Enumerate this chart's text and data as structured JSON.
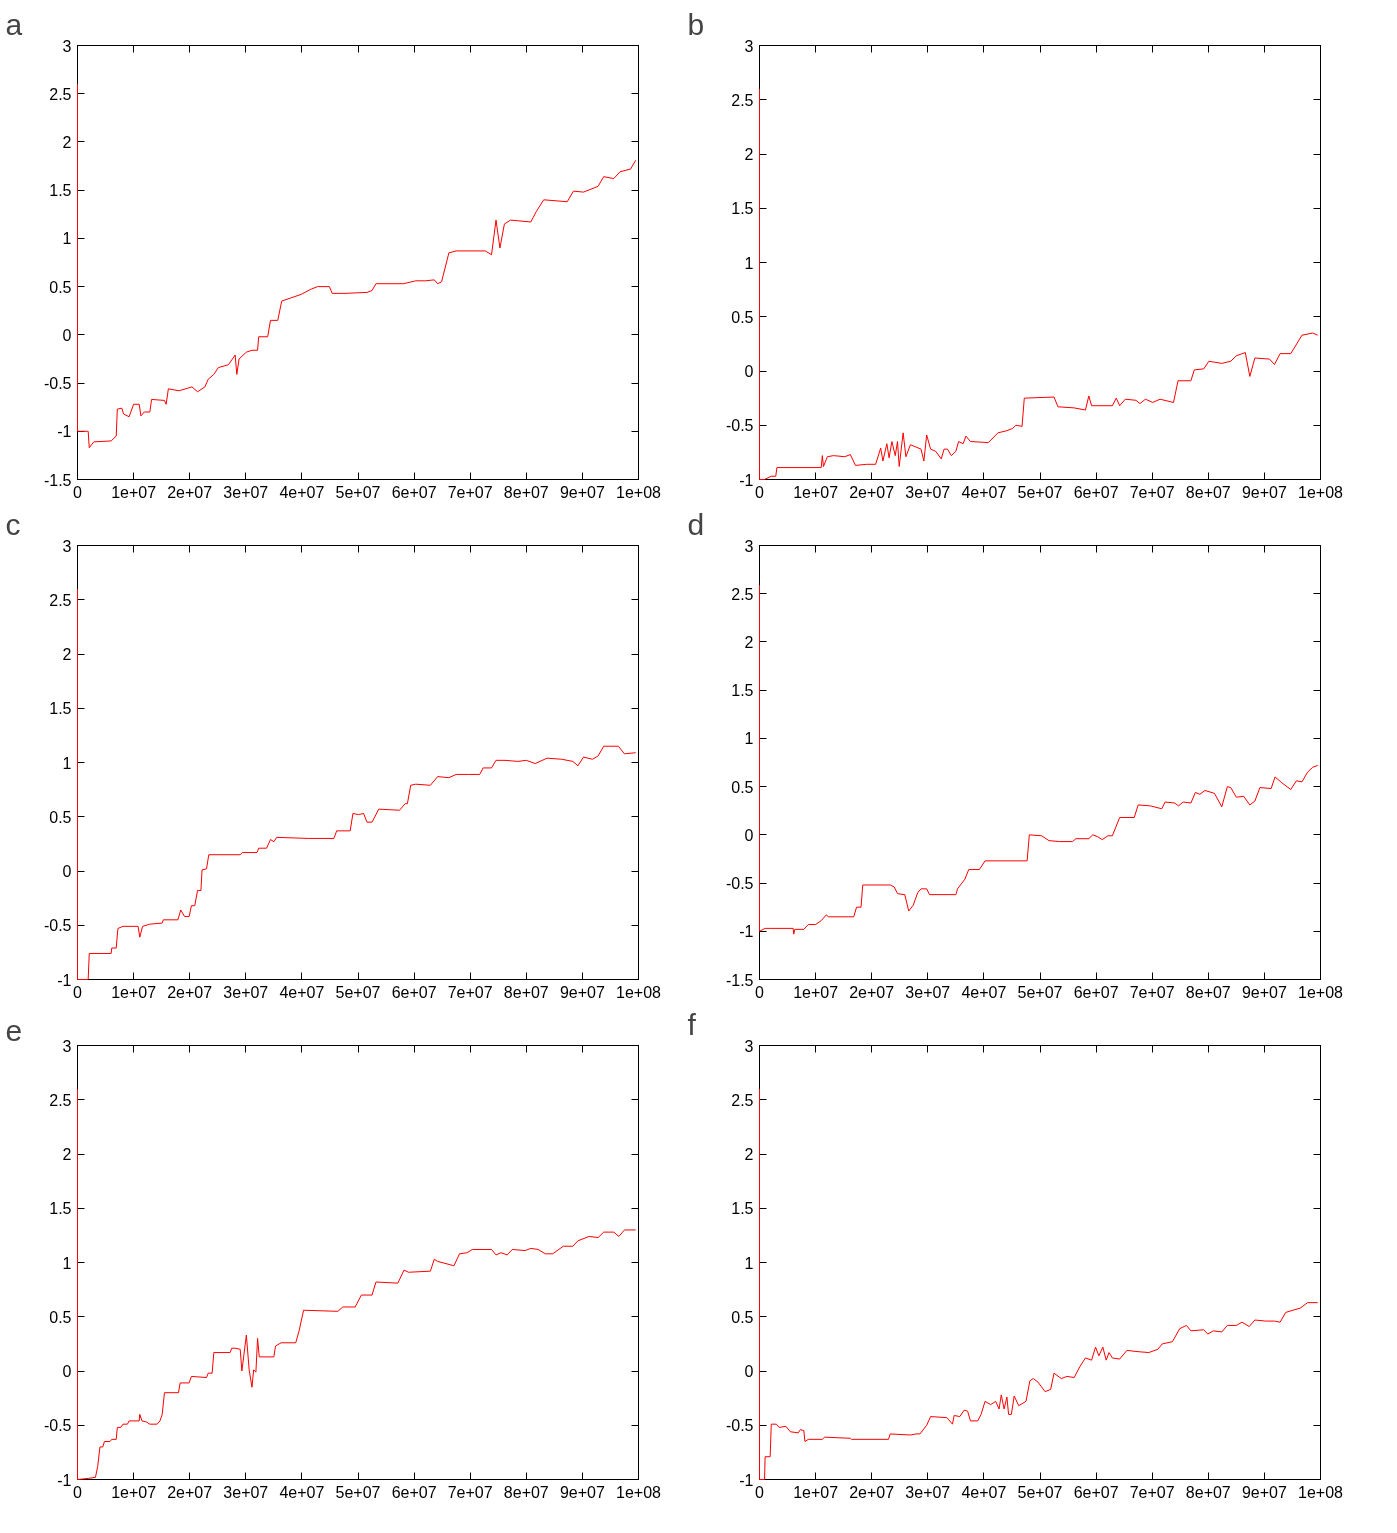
{
  "chart_data": [
    {
      "type": "line",
      "title": "a",
      "color": "#ff0000",
      "xlim": [
        0,
        100000000
      ],
      "ylim": [
        -1.5,
        3
      ],
      "xticks": [
        0,
        {
          "value": 10000000.0,
          "label": "1e+07"
        },
        {
          "value": 20000000.0,
          "label": "2e+07"
        },
        {
          "value": 30000000.0,
          "label": "3e+07"
        },
        {
          "value": 40000000.0,
          "label": "4e+07"
        },
        {
          "value": 50000000.0,
          "label": "5e+07"
        },
        {
          "value": 60000000.0,
          "label": "6e+07"
        },
        {
          "value": 70000000.0,
          "label": "7e+07"
        },
        {
          "value": 80000000.0,
          "label": "8e+07"
        },
        {
          "value": 90000000.0,
          "label": "9e+07"
        },
        {
          "value": 100000000.0,
          "label": "1e+08"
        }
      ],
      "yticks": [
        -1.5,
        -1,
        -0.5,
        0,
        0.5,
        1,
        1.5,
        2,
        2.5,
        3
      ],
      "x": [
        0,
        0,
        1900000.0,
        2100000.0,
        2900000.0,
        6000000.0,
        6900000.0,
        7100000.0,
        7900000.0,
        8200000.0,
        9200000.0,
        10000000.0,
        11000000.0,
        11300000.0,
        11900000.0,
        12900000.0,
        13200000.0,
        15500000.0,
        15800000.0,
        16200000.0,
        18100000.0,
        20400000.0,
        21400000.0,
        22700000.0,
        23300000.0,
        24300000.0,
        25100000.0,
        26900000.0,
        28100000.0,
        28400000.0,
        28800000.0,
        30100000.0,
        31100000.0,
        32100000.0,
        32300000.0,
        33900000.0,
        34400000.0,
        35700000.0,
        36400000.0,
        37900000.0,
        39900000.0,
        41500000.0,
        42800000.0,
        44900000.0,
        45400000.0,
        47700000.0,
        51600000.0,
        52500000.0,
        53200000.0,
        58100000.0,
        60300000.0,
        62000000.0,
        63600000.0,
        64200000.0,
        64900000.0,
        66200000.0,
        67500000.0,
        72700000.0,
        73800000.0,
        74600000.0,
        75300000.0,
        76100000.0,
        77200000.0,
        80800000.0,
        81800000.0,
        83100000.0,
        87300000.0,
        88400000.0,
        90200000.0,
        92800000.0,
        93800000.0,
        95600000.0,
        96700000.0,
        98600000.0,
        99500000.0
      ],
      "values": [
        2.6,
        -1.0,
        -1.0,
        -1.17,
        -1.11,
        -1.1,
        -1.05,
        -0.77,
        -0.76,
        -0.82,
        -0.85,
        -0.72,
        -0.72,
        -0.84,
        -0.8,
        -0.8,
        -0.67,
        -0.68,
        -0.72,
        -0.56,
        -0.58,
        -0.54,
        -0.59,
        -0.54,
        -0.46,
        -0.41,
        -0.34,
        -0.31,
        -0.21,
        -0.41,
        -0.25,
        -0.18,
        -0.16,
        -0.16,
        -0.02,
        -0.02,
        0.15,
        0.15,
        0.35,
        0.38,
        0.42,
        0.47,
        0.5,
        0.5,
        0.43,
        0.43,
        0.44,
        0.46,
        0.53,
        0.53,
        0.56,
        0.56,
        0.57,
        0.53,
        0.55,
        0.85,
        0.87,
        0.87,
        0.83,
        1.19,
        0.9,
        1.15,
        1.19,
        1.17,
        1.28,
        1.4,
        1.38,
        1.49,
        1.48,
        1.54,
        1.64,
        1.62,
        1.69,
        1.72,
        1.81
      ]
    },
    {
      "type": "line",
      "title": "b",
      "color": "#ff0000",
      "xlim": [
        0,
        100000000
      ],
      "ylim": [
        -1,
        3
      ],
      "xticks": [
        0,
        {
          "value": 10000000.0,
          "label": "1e+07"
        },
        {
          "value": 20000000.0,
          "label": "2e+07"
        },
        {
          "value": 30000000.0,
          "label": "3e+07"
        },
        {
          "value": 40000000.0,
          "label": "4e+07"
        },
        {
          "value": 50000000.0,
          "label": "5e+07"
        },
        {
          "value": 60000000.0,
          "label": "6e+07"
        },
        {
          "value": 70000000.0,
          "label": "7e+07"
        },
        {
          "value": 80000000.0,
          "label": "8e+07"
        },
        {
          "value": 90000000.0,
          "label": "9e+07"
        },
        {
          "value": 100000000.0,
          "label": "1e+08"
        }
      ],
      "yticks": [
        -1,
        -0.5,
        0,
        0.5,
        1,
        1.5,
        2,
        2.5,
        3
      ],
      "x": [
        0,
        0,
        900000.0,
        2100000.0,
        2900000.0,
        3100000.0,
        11000000.0,
        11200000.0,
        11400000.0,
        12100000.0,
        13200000.0,
        15200000.0,
        16200000.0,
        17100000.0,
        19100000.0,
        20700000.0,
        21600000.0,
        22000000.0,
        22700000.0,
        23100000.0,
        23600000.0,
        24200000.0,
        24600000.0,
        24900000.0,
        25600000.0,
        26100000.0,
        26900000.0,
        28800000.0,
        29300000.0,
        29800000.0,
        30500000.0,
        31400000.0,
        32400000.0,
        32900000.0,
        33500000.0,
        34200000.0,
        35000000.0,
        35500000.0,
        36300000.0,
        36800000.0,
        37600000.0,
        40800000.0,
        42500000.0,
        44100000.0,
        45100000.0,
        45700000.0,
        46800000.0,
        47200000.0,
        52500000.0,
        53200000.0,
        56100000.0,
        58100000.0,
        58700000.0,
        59200000.0,
        62900000.0,
        63600000.0,
        64200000.0,
        65200000.0,
        67100000.0,
        67800000.0,
        68800000.0,
        70100000.0,
        71400000.0,
        73800000.0,
        74600000.0,
        76900000.0,
        77500000.0,
        79200000.0,
        80100000.0,
        82400000.0,
        84000000.0,
        85000000.0,
        86600000.0,
        87400000.0,
        88300000.0,
        90900000.0,
        91800000.0,
        92800000.0,
        94700000.0,
        96700000.0,
        98600000.0,
        99500000.0
      ],
      "values": [
        2.6,
        -1.0,
        -1.0,
        -0.97,
        -0.97,
        -0.89,
        -0.89,
        -0.78,
        -0.88,
        -0.79,
        -0.78,
        -0.79,
        -0.77,
        -0.87,
        -0.86,
        -0.86,
        -0.71,
        -0.83,
        -0.67,
        -0.8,
        -0.65,
        -0.78,
        -0.65,
        -0.88,
        -0.57,
        -0.79,
        -0.68,
        -0.72,
        -0.83,
        -0.59,
        -0.72,
        -0.74,
        -0.81,
        -0.72,
        -0.72,
        -0.78,
        -0.74,
        -0.65,
        -0.67,
        -0.6,
        -0.65,
        -0.66,
        -0.57,
        -0.55,
        -0.53,
        -0.5,
        -0.51,
        -0.25,
        -0.24,
        -0.33,
        -0.34,
        -0.36,
        -0.23,
        -0.32,
        -0.32,
        -0.25,
        -0.32,
        -0.26,
        -0.27,
        -0.3,
        -0.26,
        -0.29,
        -0.26,
        -0.29,
        -0.09,
        -0.09,
        0.01,
        0.02,
        0.09,
        0.07,
        0.09,
        0.14,
        0.17,
        -0.05,
        0.12,
        0.11,
        0.06,
        0.16,
        0.16,
        0.33,
        0.35,
        0.33
      ]
    },
    {
      "type": "line",
      "title": "c",
      "color": "#ff0000",
      "xlim": [
        0,
        100000000
      ],
      "ylim": [
        -1,
        3
      ],
      "xticks": [
        0,
        {
          "value": 10000000.0,
          "label": "1e+07"
        },
        {
          "value": 20000000.0,
          "label": "2e+07"
        },
        {
          "value": 30000000.0,
          "label": "3e+07"
        },
        {
          "value": 40000000.0,
          "label": "4e+07"
        },
        {
          "value": 50000000.0,
          "label": "5e+07"
        },
        {
          "value": 60000000.0,
          "label": "6e+07"
        },
        {
          "value": 70000000.0,
          "label": "7e+07"
        },
        {
          "value": 80000000.0,
          "label": "8e+07"
        },
        {
          "value": 90000000.0,
          "label": "9e+07"
        },
        {
          "value": 100000000.0,
          "label": "1e+08"
        }
      ],
      "yticks": [
        -1,
        -0.5,
        0,
        0.5,
        1,
        1.5,
        2,
        2.5,
        3
      ],
      "x": [
        0,
        0,
        1900000.0,
        2100000.0,
        6000000.0,
        6100000.0,
        6900000.0,
        7200000.0,
        8100000.0,
        10800000.0,
        11100000.0,
        11600000.0,
        12900000.0,
        15100000.0,
        15300000.0,
        17900000.0,
        18400000.0,
        19100000.0,
        19900000.0,
        20300000.0,
        20900000.0,
        21400000.0,
        22000000.0,
        22200000.0,
        23000000.0,
        23400000.0,
        29000000.0,
        29400000.0,
        32000000.0,
        32300000.0,
        33700000.0,
        34400000.0,
        35000000.0,
        35500000.0,
        41200000.0,
        45700000.0,
        46200000.0,
        48600000.0,
        49100000.0,
        50100000.0,
        51000000.0,
        51600000.0,
        52500000.0,
        53700000.0,
        57400000.0,
        58400000.0,
        58800000.0,
        59400000.0,
        60300000.0,
        62900000.0,
        64200000.0,
        66200000.0,
        67500000.0,
        69700000.0,
        71700000.0,
        72300000.0,
        73800000.0,
        74600000.0,
        76200000.0,
        78500000.0,
        80000000.0,
        81600000.0,
        83700000.0,
        86300000.0,
        88300000.0,
        89200000.0,
        90200000.0,
        91800000.0,
        92800000.0,
        93800000.0,
        96400000.0,
        97500000.0,
        99500000.0
      ],
      "values": [
        2.6,
        -1.0,
        -1.0,
        -0.76,
        -0.76,
        -0.71,
        -0.71,
        -0.53,
        -0.51,
        -0.51,
        -0.61,
        -0.51,
        -0.49,
        -0.48,
        -0.45,
        -0.45,
        -0.36,
        -0.42,
        -0.42,
        -0.32,
        -0.32,
        -0.18,
        -0.18,
        0.01,
        0.02,
        0.15,
        0.15,
        0.17,
        0.17,
        0.21,
        0.21,
        0.29,
        0.27,
        0.31,
        0.3,
        0.3,
        0.37,
        0.37,
        0.53,
        0.52,
        0.53,
        0.45,
        0.45,
        0.57,
        0.56,
        0.62,
        0.62,
        0.79,
        0.8,
        0.79,
        0.87,
        0.86,
        0.89,
        0.89,
        0.89,
        0.95,
        0.95,
        1.02,
        1.02,
        1.01,
        1.02,
        0.99,
        1.04,
        1.03,
        1.01,
        0.97,
        1.05,
        1.03,
        1.06,
        1.15,
        1.15,
        1.08,
        1.09
      ]
    },
    {
      "type": "line",
      "title": "d",
      "color": "#ff0000",
      "xlim": [
        0,
        100000000
      ],
      "ylim": [
        -1.5,
        3
      ],
      "xticks": [
        0,
        {
          "value": 10000000.0,
          "label": "1e+07"
        },
        {
          "value": 20000000.0,
          "label": "2e+07"
        },
        {
          "value": 30000000.0,
          "label": "3e+07"
        },
        {
          "value": 40000000.0,
          "label": "4e+07"
        },
        {
          "value": 50000000.0,
          "label": "5e+07"
        },
        {
          "value": 60000000.0,
          "label": "6e+07"
        },
        {
          "value": 70000000.0,
          "label": "7e+07"
        },
        {
          "value": 80000000.0,
          "label": "8e+07"
        },
        {
          "value": 90000000.0,
          "label": "9e+07"
        },
        {
          "value": 100000000.0,
          "label": "1e+08"
        }
      ],
      "yticks": [
        -1.5,
        -1,
        -0.5,
        0,
        0.5,
        1,
        1.5,
        2,
        2.5,
        3
      ],
      "x": [
        0,
        0,
        1000000.0,
        1900000.0,
        6000000.0,
        6100000.0,
        6300000.0,
        7900000.0,
        8700000.0,
        10000000.0,
        11000000.0,
        11900000.0,
        12300000.0,
        16800000.0,
        17300000.0,
        18100000.0,
        18400000.0,
        23300000.0,
        24000000.0,
        24600000.0,
        25900000.0,
        26600000.0,
        27400000.0,
        28200000.0,
        28800000.0,
        29800000.0,
        30300000.0,
        35000000.0,
        35300000.0,
        36600000.0,
        37300000.0,
        39200000.0,
        40200000.0,
        47700000.0,
        48100000.0,
        50300000.0,
        51600000.0,
        53500000.0,
        55800000.0,
        56400000.0,
        58700000.0,
        59400000.0,
        60300000.0,
        61100000.0,
        62100000.0,
        62900000.0,
        64200000.0,
        66800000.0,
        67500000.0,
        69700000.0,
        71700000.0,
        72300000.0,
        74000000.0,
        74700000.0,
        75500000.0,
        76900000.0,
        77700000.0,
        78500000.0,
        79400000.0,
        81100000.0,
        82400000.0,
        83400000.0,
        84000000.0,
        85000000.0,
        86300000.0,
        87400000.0,
        88300000.0,
        89200000.0,
        91200000.0,
        91900000.0,
        93100000.0,
        94700000.0,
        95700000.0,
        96700000.0,
        97700000.0,
        98600000.0,
        99500000.0
      ],
      "values": [
        2.59,
        -1.0,
        -0.97,
        -0.97,
        -0.97,
        -1.03,
        -0.98,
        -0.98,
        -0.93,
        -0.93,
        -0.89,
        -0.83,
        -0.85,
        -0.85,
        -0.75,
        -0.75,
        -0.52,
        -0.52,
        -0.54,
        -0.61,
        -0.62,
        -0.79,
        -0.73,
        -0.6,
        -0.56,
        -0.56,
        -0.62,
        -0.62,
        -0.56,
        -0.46,
        -0.36,
        -0.36,
        -0.27,
        -0.27,
        0.0,
        -0.01,
        -0.06,
        -0.07,
        -0.07,
        -0.04,
        -0.04,
        0.0,
        -0.02,
        -0.05,
        -0.01,
        -0.01,
        0.18,
        0.18,
        0.31,
        0.3,
        0.27,
        0.34,
        0.33,
        0.3,
        0.34,
        0.33,
        0.44,
        0.42,
        0.46,
        0.43,
        0.29,
        0.5,
        0.49,
        0.39,
        0.4,
        0.31,
        0.35,
        0.49,
        0.48,
        0.6,
        0.54,
        0.47,
        0.56,
        0.55,
        0.65,
        0.7,
        0.72
      ]
    },
    {
      "type": "line",
      "title": "e",
      "color": "#ff0000",
      "xlim": [
        0,
        100000000
      ],
      "ylim": [
        -1,
        3
      ],
      "xticks": [
        0,
        {
          "value": 10000000.0,
          "label": "1e+07"
        },
        {
          "value": 20000000.0,
          "label": "2e+07"
        },
        {
          "value": 30000000.0,
          "label": "3e+07"
        },
        {
          "value": 40000000.0,
          "label": "4e+07"
        },
        {
          "value": 50000000.0,
          "label": "5e+07"
        },
        {
          "value": 60000000.0,
          "label": "6e+07"
        },
        {
          "value": 70000000.0,
          "label": "7e+07"
        },
        {
          "value": 80000000.0,
          "label": "8e+07"
        },
        {
          "value": 90000000.0,
          "label": "9e+07"
        },
        {
          "value": 100000000.0,
          "label": "1e+08"
        }
      ],
      "yticks": [
        -1,
        -0.5,
        0,
        0.5,
        1,
        1.5,
        2,
        2.5,
        3
      ],
      "x": [
        0,
        0,
        1900000.0,
        3200000.0,
        3600000.0,
        4000000.0,
        4500000.0,
        4800000.0,
        5800000.0,
        6100000.0,
        6900000.0,
        7100000.0,
        7700000.0,
        8100000.0,
        8900000.0,
        9200000.0,
        11000000.0,
        11100000.0,
        11500000.0,
        12300000.0,
        12900000.0,
        14200000.0,
        14700000.0,
        15100000.0,
        15500000.0,
        18000000.0,
        18300000.0,
        19900000.0,
        20300000.0,
        23000000.0,
        23300000.0,
        24000000.0,
        24300000.0,
        27200000.0,
        27500000.0,
        28100000.0,
        29000000.0,
        29300000.0,
        30100000.0,
        30600000.0,
        31100000.0,
        31400000.0,
        31800000.0,
        32100000.0,
        32400000.0,
        35000000.0,
        35300000.0,
        36300000.0,
        38900000.0,
        39500000.0,
        40300000.0,
        46400000.0,
        47300000.0,
        49500000.0,
        50600000.0,
        52500000.0,
        53200000.0,
        57100000.0,
        58200000.0,
        59000000.0,
        62900000.0,
        63600000.0,
        64200000.0,
        67100000.0,
        68100000.0,
        69400000.0,
        70400000.0,
        73800000.0,
        74600000.0,
        75500000.0,
        76600000.0,
        77500000.0,
        79800000.0,
        80800000.0,
        82100000.0,
        83400000.0,
        84700000.0,
        86600000.0,
        88300000.0,
        89200000.0,
        91200000.0,
        92800000.0,
        93800000.0,
        95600000.0,
        96500000.0,
        97500000.0,
        99500000.0
      ],
      "values": [
        2.6,
        -1.0,
        -0.99,
        -0.98,
        -0.88,
        -0.7,
        -0.7,
        -0.65,
        -0.65,
        -0.63,
        -0.63,
        -0.52,
        -0.52,
        -0.49,
        -0.49,
        -0.46,
        -0.46,
        -0.4,
        -0.46,
        -0.47,
        -0.49,
        -0.49,
        -0.46,
        -0.4,
        -0.2,
        -0.2,
        -0.11,
        -0.11,
        -0.05,
        -0.06,
        -0.02,
        -0.02,
        0.17,
        0.17,
        0.21,
        0.21,
        0.2,
        0.0,
        0.33,
        0.01,
        -0.15,
        0.01,
        -0.01,
        0.3,
        0.13,
        0.13,
        0.23,
        0.26,
        0.26,
        0.37,
        0.56,
        0.55,
        0.59,
        0.59,
        0.7,
        0.7,
        0.82,
        0.81,
        0.93,
        0.91,
        0.92,
        1.03,
        1.01,
        0.97,
        1.08,
        1.09,
        1.12,
        1.12,
        1.07,
        1.09,
        1.07,
        1.12,
        1.11,
        1.13,
        1.12,
        1.08,
        1.08,
        1.15,
        1.15,
        1.2,
        1.24,
        1.23,
        1.28,
        1.28,
        1.24,
        1.3,
        1.3
      ]
    },
    {
      "type": "line",
      "title": "f",
      "color": "#ff0000",
      "xlim": [
        0,
        100000000
      ],
      "ylim": [
        -1,
        3
      ],
      "xticks": [
        0,
        {
          "value": 10000000.0,
          "label": "1e+07"
        },
        {
          "value": 20000000.0,
          "label": "2e+07"
        },
        {
          "value": 30000000.0,
          "label": "3e+07"
        },
        {
          "value": 40000000.0,
          "label": "4e+07"
        },
        {
          "value": 50000000.0,
          "label": "5e+07"
        },
        {
          "value": 60000000.0,
          "label": "6e+07"
        },
        {
          "value": 70000000.0,
          "label": "7e+07"
        },
        {
          "value": 80000000.0,
          "label": "8e+07"
        },
        {
          "value": 90000000.0,
          "label": "9e+07"
        },
        {
          "value": 100000000.0,
          "label": "1e+08"
        }
      ],
      "yticks": [
        -1,
        -0.5,
        0,
        0.5,
        1,
        1.5,
        2,
        2.5,
        3
      ],
      "x": [
        0,
        0,
        900000.0,
        1000000.0,
        1900000.0,
        2100000.0,
        3000000.0,
        3500000.0,
        4700000.0,
        5500000.0,
        6900000.0,
        7300000.0,
        7900000.0,
        8100000.0,
        8700000.0,
        11200000.0,
        11600000.0,
        16200000.0,
        16400000.0,
        23000000.0,
        23300000.0,
        26900000.0,
        27900000.0,
        28600000.0,
        29800000.0,
        30500000.0,
        33400000.0,
        34400000.0,
        34700000.0,
        35700000.0,
        36500000.0,
        37100000.0,
        37600000.0,
        38900000.0,
        39500000.0,
        40200000.0,
        41200000.0,
        42100000.0,
        42700000.0,
        43100000.0,
        43600000.0,
        44100000.0,
        44400000.0,
        44900000.0,
        45400000.0,
        46200000.0,
        47500000.0,
        48200000.0,
        48800000.0,
        49600000.0,
        50900000.0,
        51900000.0,
        52500000.0,
        53800000.0,
        54800000.0,
        56100000.0,
        57100000.0,
        58100000.0,
        59200000.0,
        59900000.0,
        60500000.0,
        61200000.0,
        61800000.0,
        62300000.0,
        62900000.0,
        64200000.0,
        65500000.0,
        67100000.0,
        69400000.0,
        71000000.0,
        71800000.0,
        73600000.0,
        74900000.0,
        76100000.0,
        76900000.0,
        79200000.0,
        79900000.0,
        80900000.0,
        82400000.0,
        83400000.0,
        85000000.0,
        86000000.0,
        87300000.0,
        88300000.0,
        90200000.0,
        91800000.0,
        92800000.0,
        93800000.0,
        96400000.0,
        97700000.0,
        99500000.0
      ],
      "values": [
        2.6,
        -1.0,
        -1.0,
        -0.79,
        -0.79,
        -0.49,
        -0.49,
        -0.52,
        -0.51,
        -0.56,
        -0.57,
        -0.54,
        -0.55,
        -0.65,
        -0.63,
        -0.63,
        -0.61,
        -0.62,
        -0.63,
        -0.63,
        -0.58,
        -0.59,
        -0.58,
        -0.58,
        -0.5,
        -0.42,
        -0.43,
        -0.49,
        -0.41,
        -0.42,
        -0.36,
        -0.37,
        -0.46,
        -0.46,
        -0.4,
        -0.28,
        -0.31,
        -0.28,
        -0.35,
        -0.22,
        -0.35,
        -0.24,
        -0.4,
        -0.4,
        -0.23,
        -0.32,
        -0.28,
        -0.09,
        -0.07,
        -0.1,
        -0.19,
        -0.17,
        -0.02,
        -0.07,
        -0.05,
        -0.06,
        0.04,
        0.12,
        0.1,
        0.22,
        0.14,
        0.22,
        0.1,
        0.17,
        0.12,
        0.11,
        0.19,
        0.18,
        0.17,
        0.2,
        0.25,
        0.27,
        0.39,
        0.42,
        0.37,
        0.38,
        0.34,
        0.37,
        0.36,
        0.42,
        0.42,
        0.45,
        0.41,
        0.47,
        0.46,
        0.46,
        0.45,
        0.54,
        0.58,
        0.63,
        0.63
      ]
    }
  ]
}
